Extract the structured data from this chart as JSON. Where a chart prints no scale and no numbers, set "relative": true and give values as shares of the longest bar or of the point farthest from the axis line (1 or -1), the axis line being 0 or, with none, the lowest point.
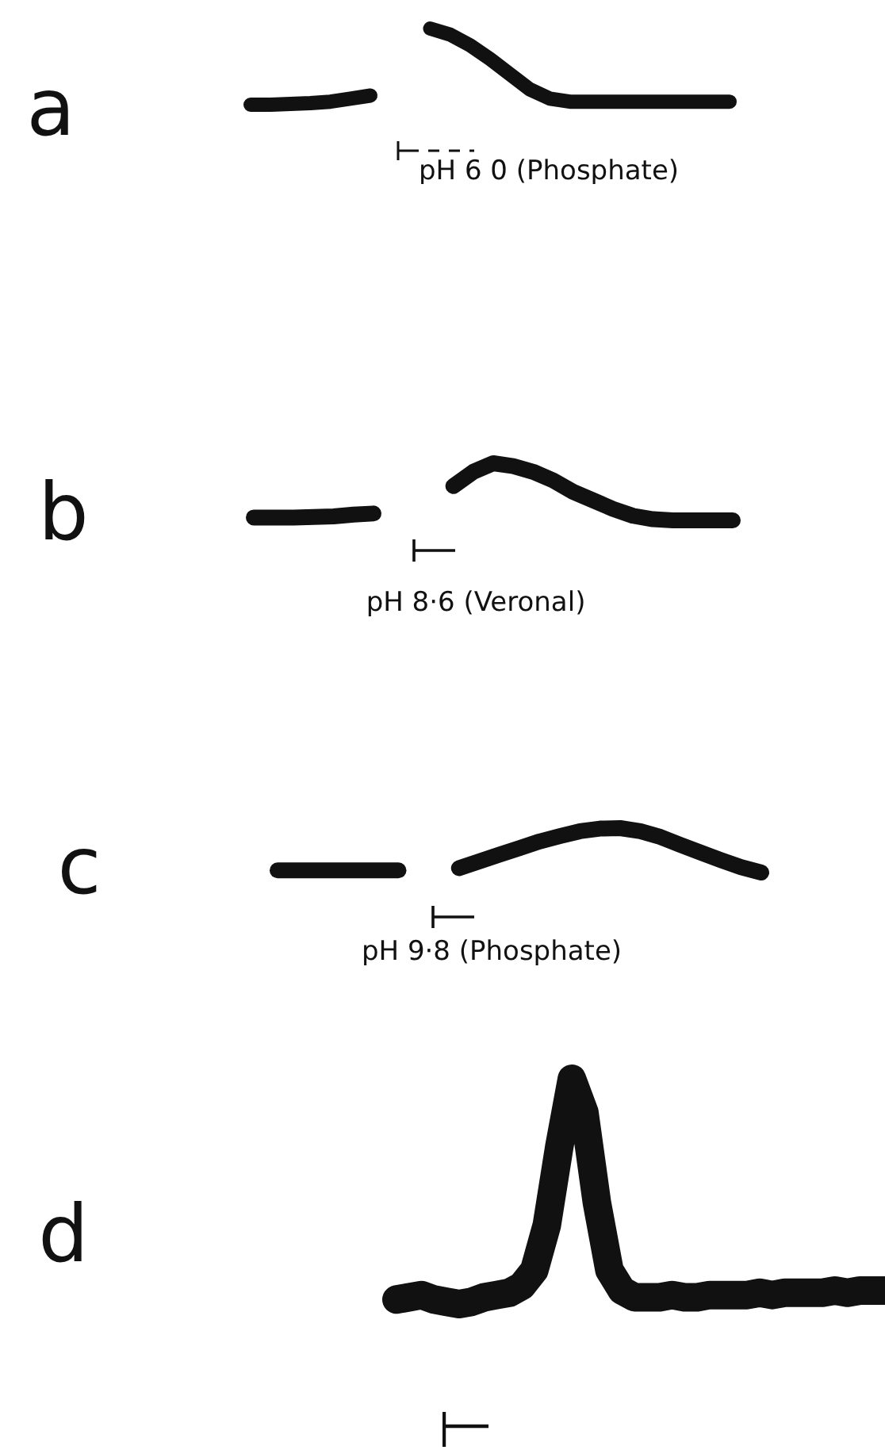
{
  "chart_data": [
    {
      "type": "line",
      "title": "a",
      "annotations": [
        "pH 6 0 (Phosphate)"
      ],
      "relative": true,
      "tick_labels": false,
      "categories": [
        null,
        null,
        null,
        null,
        null,
        null,
        null,
        null,
        null,
        null,
        null,
        null,
        null,
        null,
        null,
        null,
        null,
        null,
        null,
        null,
        null,
        null,
        null,
        null,
        null
      ],
      "series": [
        {
          "color": "#111111",
          "values": [
            0,
            0,
            0.01,
            0.02,
            0.04,
            0.08,
            0.12,
            null,
            null,
            null,
            null,
            null,
            null,
            null,
            null,
            null,
            null,
            null,
            null,
            null,
            null,
            null,
            null,
            null,
            null
          ]
        },
        {
          "color": "#111111",
          "values": [
            null,
            null,
            null,
            null,
            null,
            null,
            null,
            null,
            null,
            1,
            0.92,
            0.78,
            0.6,
            0.4,
            0.2,
            0.08,
            0.04,
            0.04,
            0.04,
            0.04,
            0.04,
            0.04,
            0.04,
            0.04,
            0.04
          ]
        }
      ]
    },
    {
      "type": "line",
      "title": "b",
      "annotations": [
        "pH 8·6 (Veronal)"
      ],
      "relative": true,
      "tick_labels": false,
      "categories": [
        null,
        null,
        null,
        null,
        null,
        null,
        null,
        null,
        null,
        null,
        null,
        null,
        null,
        null,
        null,
        null,
        null,
        null,
        null,
        null,
        null,
        null,
        null,
        null,
        null
      ],
      "series": [
        {
          "color": "#111111",
          "values": [
            0.05,
            0.05,
            0.05,
            0.06,
            0.07,
            0.1,
            0.12,
            null,
            null,
            null,
            null,
            null,
            null,
            null,
            null,
            null,
            null,
            null,
            null,
            null,
            null,
            null,
            null,
            null,
            null
          ]
        },
        {
          "color": "#111111",
          "values": [
            null,
            null,
            null,
            null,
            null,
            null,
            null,
            null,
            null,
            null,
            0.6,
            0.85,
            1,
            0.95,
            0.85,
            0.7,
            0.5,
            0.35,
            0.2,
            0.08,
            0.02,
            0,
            0,
            0,
            0
          ]
        }
      ]
    },
    {
      "type": "line",
      "title": "c",
      "annotations": [
        "pH 9·8 (Phosphate)"
      ],
      "relative": true,
      "tick_labels": false,
      "categories": [
        null,
        null,
        null,
        null,
        null,
        null,
        null,
        null,
        null,
        null,
        null,
        null,
        null,
        null,
        null,
        null,
        null,
        null,
        null,
        null,
        null,
        null,
        null,
        null,
        null
      ],
      "series": [
        {
          "color": "#111111",
          "values": [
            0.05,
            0.05,
            0.05,
            0.05,
            0.05,
            0.05,
            0.05,
            null,
            null,
            null,
            null,
            null,
            null,
            null,
            null,
            null,
            null,
            null,
            null,
            null,
            null,
            null,
            null,
            null,
            null
          ]
        },
        {
          "color": "#111111",
          "values": [
            null,
            null,
            null,
            null,
            null,
            null,
            null,
            null,
            null,
            0.1,
            0.25,
            0.4,
            0.55,
            0.7,
            0.82,
            0.93,
            0.99,
            1,
            0.93,
            0.8,
            0.62,
            0.45,
            0.28,
            0.12,
            0
          ]
        }
      ]
    },
    {
      "type": "line",
      "title": "d",
      "relative": true,
      "tick_labels": false,
      "categories": [
        null,
        null,
        null,
        null,
        null,
        null,
        null,
        null,
        null,
        null,
        null,
        null,
        null,
        null,
        null,
        null,
        null,
        null,
        null,
        null,
        null,
        null,
        null,
        null,
        null,
        null,
        null,
        null,
        null,
        null,
        null,
        null,
        null,
        null,
        null,
        null,
        null,
        null,
        null,
        null
      ],
      "series": [
        {
          "color": "#111111",
          "values": [
            0.02,
            0.03,
            0.04,
            0.02,
            0.01,
            0,
            0.01,
            0.03,
            0.04,
            0.05,
            0.08,
            0.15,
            0.35,
            0.7,
            1,
            0.85,
            0.45,
            0.15,
            0.06,
            0.03,
            0.03,
            0.03,
            0.04,
            0.03,
            0.03,
            0.04,
            0.04,
            0.04,
            0.04,
            0.05,
            0.04,
            0.05,
            0.05,
            0.05,
            0.05,
            0.06,
            0.05,
            0.06,
            0.06,
            0.06
          ]
        }
      ]
    }
  ]
}
